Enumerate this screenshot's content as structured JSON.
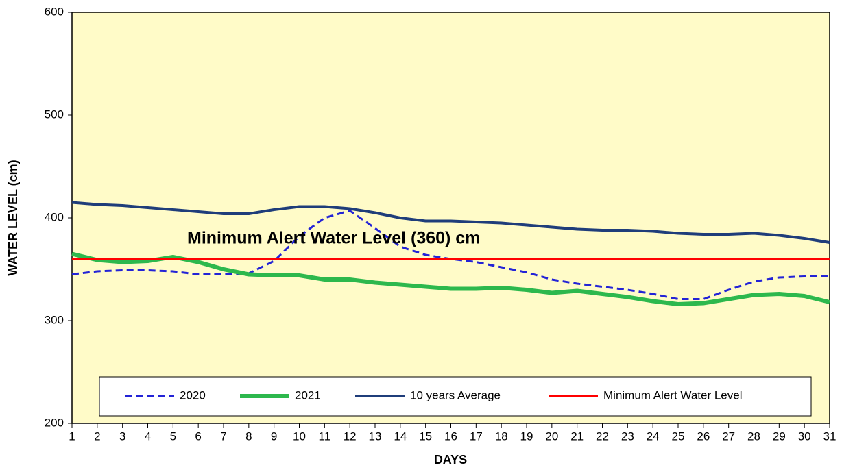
{
  "chart_data": {
    "type": "line",
    "annotation": "Minimum Alert Water  Level (360) cm",
    "x_label": "DAYS",
    "y_label": "WATER LEVEL (cm)",
    "x": [
      1,
      2,
      3,
      4,
      5,
      6,
      7,
      8,
      9,
      10,
      11,
      12,
      13,
      14,
      15,
      16,
      17,
      18,
      19,
      20,
      21,
      22,
      23,
      24,
      25,
      26,
      27,
      28,
      29,
      30,
      31
    ],
    "xlim": [
      1,
      31
    ],
    "xticks": [
      1,
      2,
      3,
      4,
      5,
      6,
      7,
      8,
      9,
      10,
      11,
      12,
      13,
      14,
      15,
      16,
      17,
      18,
      19,
      20,
      21,
      22,
      23,
      24,
      25,
      26,
      27,
      28,
      29,
      30,
      31
    ],
    "ylim": [
      200,
      600
    ],
    "yticks": [
      200,
      300,
      400,
      500,
      600
    ],
    "grid": false,
    "background": "#fffbc8",
    "legend_position": "bottom",
    "series": [
      {
        "name": "2020",
        "color": "#2323d6",
        "dashed": true,
        "width": 3,
        "values": [
          345,
          348,
          349,
          349,
          348,
          345,
          345,
          346,
          358,
          382,
          400,
          407,
          390,
          372,
          364,
          360,
          357,
          352,
          347,
          340,
          336,
          333,
          330,
          326,
          321,
          321,
          330,
          338,
          342,
          343,
          343
        ]
      },
      {
        "name": "2021",
        "color": "#2db84d",
        "dashed": false,
        "width": 6,
        "values": [
          365,
          359,
          357,
          358,
          362,
          357,
          350,
          345,
          344,
          344,
          340,
          340,
          337,
          335,
          333,
          331,
          331,
          332,
          330,
          327,
          329,
          326,
          323,
          319,
          316,
          317,
          321,
          325,
          326,
          324,
          318
        ]
      },
      {
        "name": "10 years Average",
        "color": "#1f3d7a",
        "dashed": false,
        "width": 4,
        "values": [
          415,
          413,
          412,
          410,
          408,
          406,
          404,
          404,
          408,
          411,
          411,
          409,
          405,
          400,
          397,
          397,
          396,
          395,
          393,
          391,
          389,
          388,
          388,
          387,
          385,
          384,
          384,
          385,
          383,
          380,
          376
        ]
      },
      {
        "name": "Minimum Alert Water Level",
        "color": "#ff0000",
        "dashed": false,
        "width": 4,
        "values": [
          360,
          360,
          360,
          360,
          360,
          360,
          360,
          360,
          360,
          360,
          360,
          360,
          360,
          360,
          360,
          360,
          360,
          360,
          360,
          360,
          360,
          360,
          360,
          360,
          360,
          360,
          360,
          360,
          360,
          360,
          360
        ]
      }
    ]
  }
}
